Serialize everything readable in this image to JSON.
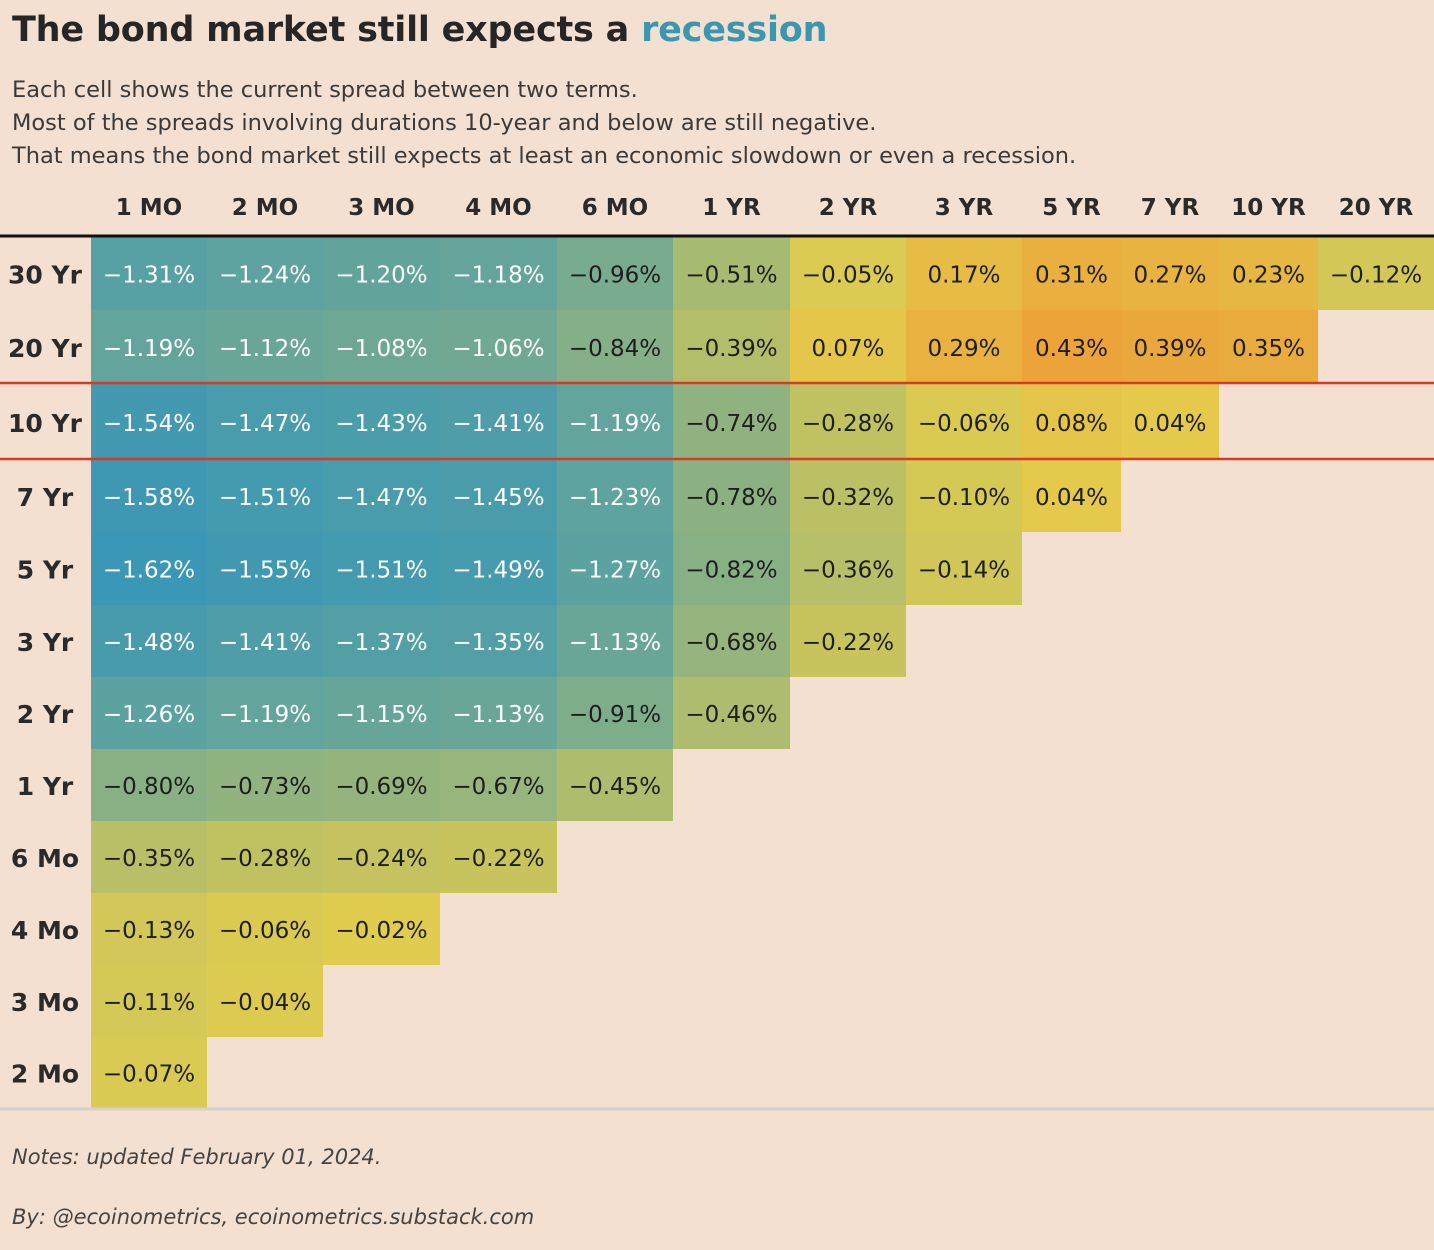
{
  "header": {
    "title_prefix": "The bond market still expects a ",
    "title_accent": "recession",
    "subtitle_lines": [
      "Each cell shows the current spread between two terms.",
      "Most of the spreads involving durations 10-year and below are still negative.",
      "That means the bond market still expects at least an economic slowdown or even a recession."
    ]
  },
  "footer": {
    "notes": "Notes: updated February 01, 2024.",
    "credit": "By: @ecoinometrics, ecoinometrics.substack.com"
  },
  "colors": {
    "background": "#f3e0d1",
    "accent": "#3a97ad",
    "scale_most_negative": "#3a97b5",
    "scale_zero": "#e3cd4d",
    "scale_most_positive": "#eba33a",
    "highlight_rule": "#d93a24"
  },
  "chart_data": {
    "type": "heatmap",
    "title": "The bond market still expects a recession",
    "columns": [
      "1 MO",
      "2 MO",
      "3 MO",
      "4 MO",
      "6 MO",
      "1 YR",
      "2 YR",
      "3 YR",
      "5 YR",
      "7 YR",
      "10 YR",
      "20 YR"
    ],
    "rows": [
      "30 Yr",
      "20 Yr",
      "10 Yr",
      "7 Yr",
      "5 Yr",
      "3 Yr",
      "2 Yr",
      "1 Yr",
      "6 Mo",
      "4 Mo",
      "3 Mo",
      "2 Mo"
    ],
    "highlighted_row": "10 Yr",
    "unit": "%",
    "values": [
      [
        -1.31,
        -1.24,
        -1.2,
        -1.18,
        -0.96,
        -0.51,
        -0.05,
        0.17,
        0.31,
        0.27,
        0.23,
        -0.12
      ],
      [
        -1.19,
        -1.12,
        -1.08,
        -1.06,
        -0.84,
        -0.39,
        0.07,
        0.29,
        0.43,
        0.39,
        0.35,
        null
      ],
      [
        -1.54,
        -1.47,
        -1.43,
        -1.41,
        -1.19,
        -0.74,
        -0.28,
        -0.06,
        0.08,
        0.04,
        null,
        null
      ],
      [
        -1.58,
        -1.51,
        -1.47,
        -1.45,
        -1.23,
        -0.78,
        -0.32,
        -0.1,
        0.04,
        null,
        null,
        null
      ],
      [
        -1.62,
        -1.55,
        -1.51,
        -1.49,
        -1.27,
        -0.82,
        -0.36,
        -0.14,
        null,
        null,
        null,
        null
      ],
      [
        -1.48,
        -1.41,
        -1.37,
        -1.35,
        -1.13,
        -0.68,
        -0.22,
        null,
        null,
        null,
        null,
        null
      ],
      [
        -1.26,
        -1.19,
        -1.15,
        -1.13,
        -0.91,
        -0.46,
        null,
        null,
        null,
        null,
        null,
        null
      ],
      [
        -0.8,
        -0.73,
        -0.69,
        -0.67,
        -0.45,
        null,
        null,
        null,
        null,
        null,
        null,
        null
      ],
      [
        -0.35,
        -0.28,
        -0.24,
        -0.22,
        null,
        null,
        null,
        null,
        null,
        null,
        null,
        null
      ],
      [
        -0.13,
        -0.06,
        -0.02,
        null,
        null,
        null,
        null,
        null,
        null,
        null,
        null,
        null
      ],
      [
        -0.11,
        -0.04,
        null,
        null,
        null,
        null,
        null,
        null,
        null,
        null,
        null,
        null
      ],
      [
        -0.07,
        null,
        null,
        null,
        null,
        null,
        null,
        null,
        null,
        null,
        null,
        null
      ]
    ]
  }
}
